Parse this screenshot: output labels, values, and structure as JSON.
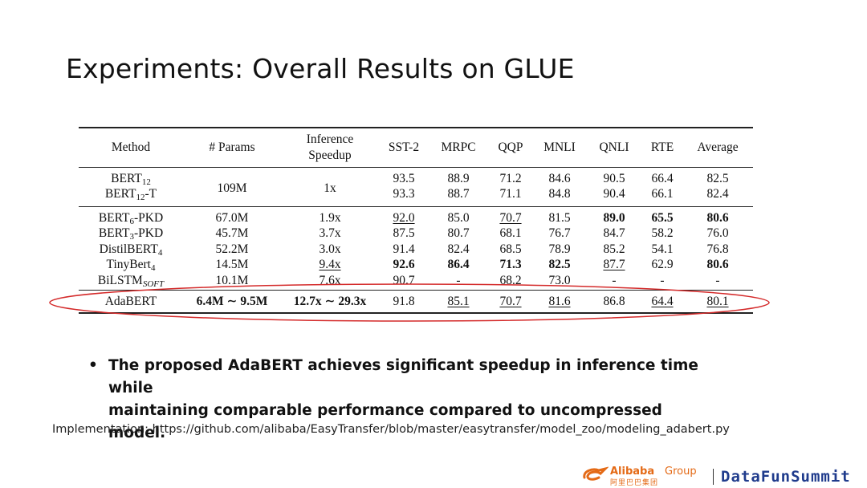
{
  "slide": {
    "title": "Experiments: Overall Results on GLUE"
  },
  "table": {
    "headers": {
      "method": "Method",
      "params": "# Params",
      "speedup_line1": "Inference",
      "speedup_line2": "Speedup",
      "sst2": "SST-2",
      "mrpc": "MRPC",
      "qqp": "QQP",
      "mnli": "MNLI",
      "qnli": "QNLI",
      "rte": "RTE",
      "avg": "Average"
    },
    "teacher_params": "109M",
    "teacher_speedup": "1x",
    "rows": [
      {
        "method": "BERT",
        "sub": "12",
        "suffix": "",
        "params": "",
        "speedup": "",
        "sst2": "93.5",
        "mrpc": "88.9",
        "qqp": "71.2",
        "mnli": "84.6",
        "qnli": "90.5",
        "rte": "66.4",
        "avg": "82.5"
      },
      {
        "method": "BERT",
        "sub": "12",
        "suffix": "-T",
        "params": "",
        "speedup": "",
        "sst2": "93.3",
        "mrpc": "88.7",
        "qqp": "71.1",
        "mnli": "84.8",
        "qnli": "90.4",
        "rte": "66.1",
        "avg": "82.4"
      },
      {
        "method": "BERT",
        "sub": "6",
        "suffix": "-PKD",
        "params": "67.0M",
        "speedup": "1.9x",
        "sst2": "92.0",
        "mrpc": "85.0",
        "qqp": "70.7",
        "mnli": "81.5",
        "qnli": "89.0",
        "rte": "65.5",
        "avg": "80.6"
      },
      {
        "method": "BERT",
        "sub": "3",
        "suffix": "-PKD",
        "params": "45.7M",
        "speedup": "3.7x",
        "sst2": "87.5",
        "mrpc": "80.7",
        "qqp": "68.1",
        "mnli": "76.7",
        "qnli": "84.7",
        "rte": "58.2",
        "avg": "76.0"
      },
      {
        "method": "DistilBERT",
        "sub": "4",
        "suffix": "",
        "params": "52.2M",
        "speedup": "3.0x",
        "sst2": "91.4",
        "mrpc": "82.4",
        "qqp": "68.5",
        "mnli": "78.9",
        "qnli": "85.2",
        "rte": "54.1",
        "avg": "76.8"
      },
      {
        "method": "TinyBert",
        "sub": "4",
        "suffix": "",
        "params": "14.5M",
        "speedup": "9.4x",
        "sst2": "92.6",
        "mrpc": "86.4",
        "qqp": "71.3",
        "mnli": "82.5",
        "qnli": "87.7",
        "rte": "62.9",
        "avg": "80.6"
      },
      {
        "method": "BiLSTM",
        "sub": "SOFT",
        "suffix": "",
        "params": "10.1M",
        "speedup": "7.6x",
        "sst2": "90.7",
        "mrpc": "-",
        "qqp": "68.2",
        "mnli": "73.0",
        "qnli": "-",
        "rte": "-",
        "avg": "-"
      },
      {
        "method": "AdaBERT",
        "sub": "",
        "suffix": "",
        "params": "6.4M ∼ 9.5M",
        "speedup": "12.7x ∼ 29.3x",
        "sst2": "91.8",
        "mrpc": "85.1",
        "qqp": "70.7",
        "mnli": "81.6",
        "qnli": "86.8",
        "rte": "64.4",
        "avg": "80.1"
      }
    ]
  },
  "bullet": {
    "line1": "The proposed AdaBERT achieves significant speedup in inference time while",
    "line2": "maintaining comparable performance compared to uncompressed model."
  },
  "implementation_note": "Implementation: https://github.com/alibaba/EasyTransfer/blob/master/easytransfer/model_zoo/modeling_adabert.py",
  "footer": {
    "alibaba_name": "Alibaba",
    "alibaba_group": "Group",
    "alibaba_cn": "阿里巴巴集团",
    "datafun": "DataFunSummit"
  },
  "colors": {
    "highlight": "#d42a2a",
    "alibaba_orange": "#e46a16",
    "datafun_blue": "#1f3b8c"
  }
}
